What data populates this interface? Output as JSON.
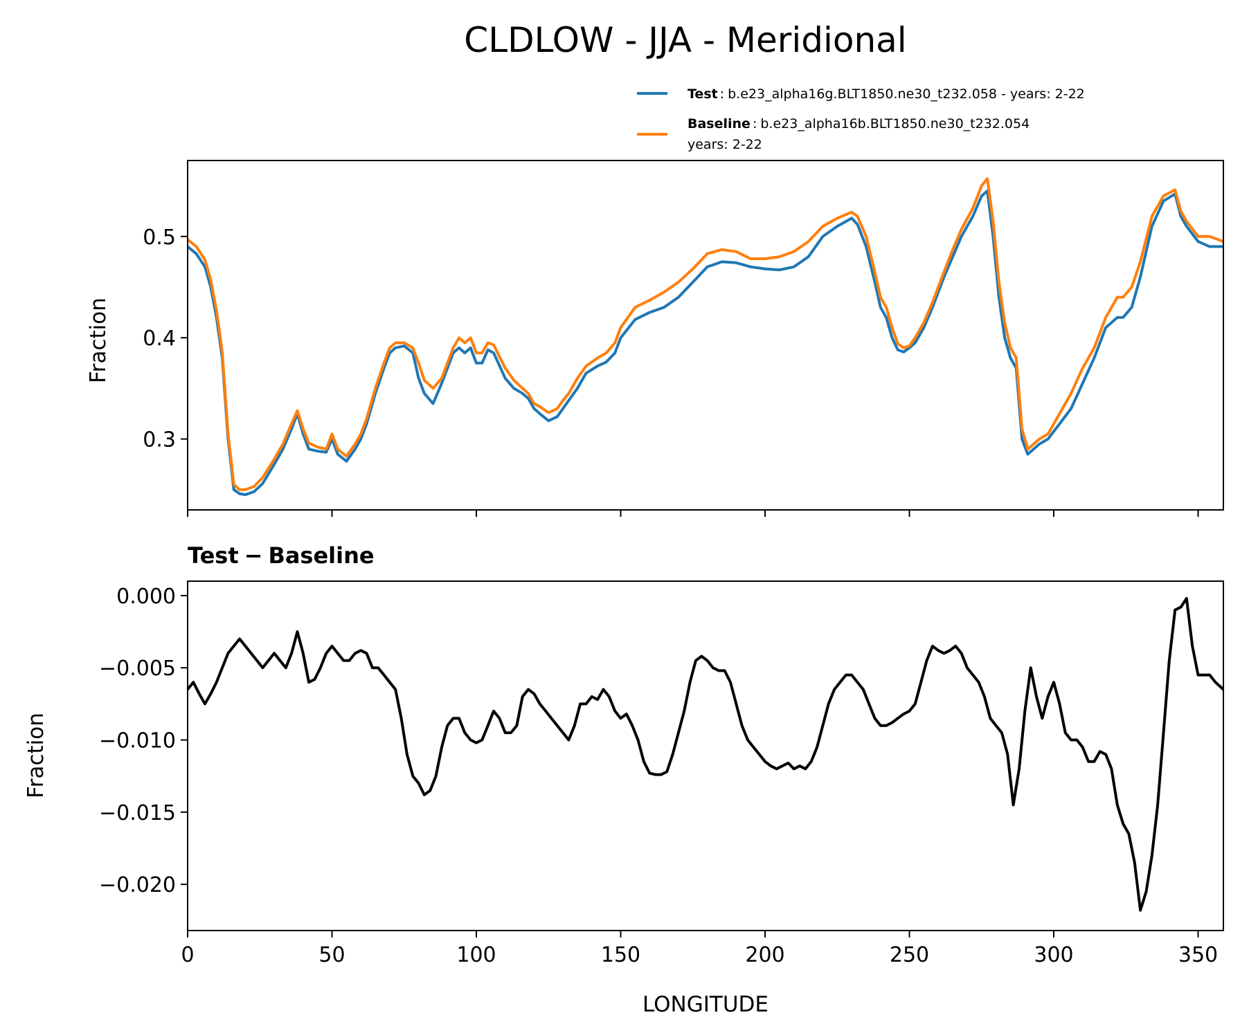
{
  "chart_data": [
    {
      "type": "line",
      "title": "CLDLOW - JJA - Meridional",
      "ylabel": "Fraction",
      "xlim": [
        0,
        358.75
      ],
      "ylim": [
        0.23,
        0.575
      ],
      "yticks": [
        "0.3",
        "0.4",
        "0.5"
      ],
      "ytick_values": [
        0.3,
        0.4,
        0.5
      ],
      "xticks": [
        0,
        50,
        100,
        150,
        200,
        250,
        300,
        350
      ],
      "legend": {
        "position": "above-right",
        "entries": [
          {
            "series": "Test",
            "name": "Test",
            "separator": ":",
            "desc": "b.e23_alpha16g.BLT1850.ne30_t232.058 - years: 2-22",
            "desc2": ""
          },
          {
            "series": "Baseline",
            "name": "Baseline",
            "separator": ":",
            "desc": "b.e23_alpha16b.BLT1850.ne30_t232.054",
            "desc2": "years: 2-22"
          }
        ]
      },
      "series": [
        {
          "name": "Test",
          "color": "#1f77b4",
          "x": [
            0,
            3,
            6,
            8,
            10,
            12,
            14,
            16,
            18,
            20,
            23,
            26,
            30,
            33,
            36,
            38,
            40,
            42,
            45,
            48,
            50,
            52,
            55,
            58,
            60,
            62,
            65,
            68,
            70,
            72,
            75,
            78,
            80,
            82,
            85,
            88,
            90,
            92,
            94,
            96,
            98,
            100,
            102,
            104,
            106,
            110,
            113,
            116,
            118,
            120,
            122,
            125,
            128,
            130,
            132,
            135,
            138,
            142,
            145,
            148,
            150,
            155,
            160,
            165,
            170,
            175,
            180,
            185,
            190,
            195,
            200,
            205,
            210,
            215,
            220,
            225,
            230,
            232,
            235,
            238,
            240,
            242,
            244,
            246,
            248,
            250,
            252,
            255,
            258,
            262,
            265,
            268,
            272,
            275,
            277,
            279,
            281,
            283,
            285,
            287,
            289,
            291,
            293,
            295,
            298,
            302,
            306,
            310,
            314,
            318,
            322,
            324,
            327,
            330,
            334,
            338,
            342,
            344,
            346,
            350,
            354,
            358.75
          ],
          "values": [
            0.49,
            0.483,
            0.47,
            0.45,
            0.42,
            0.38,
            0.3,
            0.25,
            0.246,
            0.245,
            0.248,
            0.256,
            0.275,
            0.29,
            0.31,
            0.325,
            0.305,
            0.29,
            0.288,
            0.287,
            0.3,
            0.285,
            0.278,
            0.29,
            0.3,
            0.315,
            0.345,
            0.37,
            0.385,
            0.39,
            0.392,
            0.385,
            0.36,
            0.345,
            0.335,
            0.355,
            0.37,
            0.385,
            0.39,
            0.385,
            0.39,
            0.375,
            0.375,
            0.388,
            0.385,
            0.36,
            0.35,
            0.345,
            0.34,
            0.33,
            0.325,
            0.318,
            0.322,
            0.33,
            0.338,
            0.35,
            0.365,
            0.372,
            0.376,
            0.385,
            0.4,
            0.418,
            0.425,
            0.43,
            0.44,
            0.455,
            0.47,
            0.475,
            0.474,
            0.47,
            0.468,
            0.467,
            0.47,
            0.48,
            0.5,
            0.51,
            0.518,
            0.512,
            0.49,
            0.455,
            0.43,
            0.42,
            0.4,
            0.388,
            0.386,
            0.39,
            0.395,
            0.41,
            0.43,
            0.46,
            0.48,
            0.5,
            0.52,
            0.54,
            0.545,
            0.5,
            0.44,
            0.4,
            0.38,
            0.37,
            0.3,
            0.285,
            0.29,
            0.295,
            0.3,
            0.315,
            0.33,
            0.355,
            0.38,
            0.41,
            0.42,
            0.42,
            0.43,
            0.46,
            0.51,
            0.535,
            0.542,
            0.52,
            0.51,
            0.495,
            0.49,
            0.49
          ]
        },
        {
          "name": "Baseline",
          "color": "#ff7f0e",
          "x": [
            0,
            3,
            6,
            8,
            10,
            12,
            14,
            16,
            18,
            20,
            23,
            26,
            30,
            33,
            36,
            38,
            40,
            42,
            45,
            48,
            50,
            52,
            55,
            58,
            60,
            62,
            65,
            68,
            70,
            72,
            75,
            78,
            80,
            82,
            85,
            88,
            90,
            92,
            94,
            96,
            98,
            100,
            102,
            104,
            106,
            110,
            113,
            116,
            118,
            120,
            122,
            125,
            128,
            130,
            132,
            135,
            138,
            142,
            145,
            148,
            150,
            155,
            160,
            165,
            170,
            175,
            180,
            185,
            190,
            195,
            200,
            205,
            210,
            215,
            220,
            225,
            230,
            232,
            235,
            238,
            240,
            242,
            244,
            246,
            248,
            250,
            252,
            255,
            258,
            262,
            265,
            268,
            272,
            275,
            277,
            279,
            281,
            283,
            285,
            287,
            289,
            291,
            293,
            295,
            298,
            302,
            306,
            310,
            314,
            318,
            322,
            324,
            327,
            330,
            334,
            338,
            342,
            344,
            346,
            350,
            354,
            358.75
          ],
          "values": [
            0.497,
            0.49,
            0.477,
            0.457,
            0.427,
            0.386,
            0.305,
            0.255,
            0.25,
            0.25,
            0.253,
            0.262,
            0.28,
            0.295,
            0.315,
            0.328,
            0.31,
            0.296,
            0.292,
            0.29,
            0.305,
            0.29,
            0.283,
            0.295,
            0.305,
            0.32,
            0.35,
            0.375,
            0.39,
            0.395,
            0.395,
            0.39,
            0.375,
            0.358,
            0.35,
            0.36,
            0.375,
            0.39,
            0.4,
            0.395,
            0.4,
            0.385,
            0.385,
            0.395,
            0.393,
            0.37,
            0.358,
            0.35,
            0.345,
            0.335,
            0.332,
            0.326,
            0.33,
            0.338,
            0.345,
            0.36,
            0.372,
            0.38,
            0.385,
            0.395,
            0.41,
            0.43,
            0.437,
            0.445,
            0.455,
            0.468,
            0.483,
            0.487,
            0.485,
            0.478,
            0.478,
            0.48,
            0.485,
            0.495,
            0.51,
            0.518,
            0.524,
            0.52,
            0.5,
            0.465,
            0.44,
            0.43,
            0.41,
            0.394,
            0.39,
            0.392,
            0.4,
            0.415,
            0.435,
            0.465,
            0.487,
            0.507,
            0.528,
            0.55,
            0.557,
            0.515,
            0.455,
            0.415,
            0.39,
            0.38,
            0.31,
            0.29,
            0.295,
            0.3,
            0.305,
            0.325,
            0.345,
            0.37,
            0.39,
            0.42,
            0.44,
            0.44,
            0.45,
            0.475,
            0.52,
            0.54,
            0.546,
            0.525,
            0.515,
            0.5,
            0.5,
            0.495
          ]
        }
      ]
    },
    {
      "type": "line",
      "title": "Test − Baseline",
      "title_parts": {
        "left": "Test",
        "op": "−",
        "right": "Baseline"
      },
      "xlabel": "LONGITUDE",
      "ylabel": "Fraction",
      "xlim": [
        0,
        358.75
      ],
      "ylim": [
        -0.0232,
        0.001
      ],
      "yticks": [
        "0.000",
        "−0.005",
        "−0.010",
        "−0.015",
        "−0.020"
      ],
      "ytick_values": [
        0.0,
        -0.005,
        -0.01,
        -0.015,
        -0.02
      ],
      "xticks": [
        0,
        50,
        100,
        150,
        200,
        250,
        300,
        350
      ],
      "series": [
        {
          "name": "Test − Baseline",
          "color": "#000000",
          "x": [
            0,
            2,
            4,
            6,
            8,
            10,
            12,
            14,
            16,
            18,
            20,
            22,
            24,
            26,
            28,
            30,
            32,
            34,
            36,
            38,
            40,
            42,
            44,
            46,
            48,
            50,
            52,
            54,
            56,
            58,
            60,
            62,
            64,
            66,
            68,
            70,
            72,
            74,
            76,
            78,
            80,
            82,
            84,
            86,
            88,
            90,
            92,
            94,
            96,
            98,
            100,
            102,
            104,
            106,
            108,
            110,
            112,
            114,
            116,
            118,
            120,
            122,
            124,
            126,
            128,
            130,
            132,
            134,
            136,
            138,
            140,
            142,
            144,
            146,
            148,
            150,
            152,
            154,
            156,
            158,
            160,
            162,
            164,
            166,
            168,
            170,
            172,
            174,
            176,
            178,
            180,
            182,
            184,
            186,
            188,
            190,
            192,
            194,
            196,
            198,
            200,
            202,
            204,
            206,
            208,
            210,
            212,
            214,
            216,
            218,
            220,
            222,
            224,
            226,
            228,
            230,
            232,
            234,
            236,
            238,
            240,
            242,
            244,
            246,
            248,
            250,
            252,
            254,
            256,
            258,
            260,
            262,
            264,
            266,
            268,
            270,
            272,
            274,
            276,
            278,
            280,
            282,
            284,
            286,
            288,
            290,
            292,
            294,
            296,
            298,
            300,
            302,
            304,
            306,
            308,
            310,
            312,
            314,
            316,
            318,
            320,
            322,
            324,
            326,
            328,
            330,
            332,
            334,
            336,
            338,
            340,
            342,
            344,
            346,
            348,
            350,
            352,
            354,
            356,
            358.75
          ],
          "values": [
            -0.0065,
            -0.006,
            -0.0068,
            -0.0075,
            -0.0068,
            -0.006,
            -0.005,
            -0.004,
            -0.0035,
            -0.003,
            -0.0035,
            -0.004,
            -0.0045,
            -0.005,
            -0.0045,
            -0.004,
            -0.0045,
            -0.005,
            -0.004,
            -0.0025,
            -0.004,
            -0.006,
            -0.0058,
            -0.005,
            -0.004,
            -0.0035,
            -0.004,
            -0.0045,
            -0.0045,
            -0.004,
            -0.0038,
            -0.004,
            -0.005,
            -0.005,
            -0.0055,
            -0.006,
            -0.0065,
            -0.0085,
            -0.011,
            -0.0125,
            -0.013,
            -0.0138,
            -0.0135,
            -0.0125,
            -0.0105,
            -0.009,
            -0.0085,
            -0.0085,
            -0.0095,
            -0.01,
            -0.0102,
            -0.01,
            -0.009,
            -0.008,
            -0.0085,
            -0.0095,
            -0.0095,
            -0.009,
            -0.007,
            -0.0065,
            -0.0068,
            -0.0075,
            -0.008,
            -0.0085,
            -0.009,
            -0.0095,
            -0.01,
            -0.009,
            -0.0075,
            -0.0075,
            -0.007,
            -0.0072,
            -0.0065,
            -0.007,
            -0.008,
            -0.0085,
            -0.0082,
            -0.009,
            -0.01,
            -0.0115,
            -0.0123,
            -0.0124,
            -0.0124,
            -0.0122,
            -0.011,
            -0.0095,
            -0.008,
            -0.006,
            -0.0045,
            -0.0042,
            -0.0045,
            -0.005,
            -0.0052,
            -0.0052,
            -0.006,
            -0.0075,
            -0.009,
            -0.01,
            -0.0105,
            -0.011,
            -0.0115,
            -0.0118,
            -0.012,
            -0.0118,
            -0.0116,
            -0.012,
            -0.0118,
            -0.012,
            -0.0115,
            -0.0105,
            -0.009,
            -0.0075,
            -0.0065,
            -0.006,
            -0.0055,
            -0.0055,
            -0.006,
            -0.0065,
            -0.0075,
            -0.0085,
            -0.009,
            -0.009,
            -0.0088,
            -0.0085,
            -0.0082,
            -0.008,
            -0.0075,
            -0.006,
            -0.0045,
            -0.0035,
            -0.0038,
            -0.004,
            -0.0038,
            -0.0035,
            -0.004,
            -0.005,
            -0.0055,
            -0.006,
            -0.007,
            -0.0085,
            -0.009,
            -0.0095,
            -0.011,
            -0.0145,
            -0.012,
            -0.008,
            -0.005,
            -0.007,
            -0.0085,
            -0.007,
            -0.006,
            -0.0075,
            -0.0095,
            -0.01,
            -0.01,
            -0.0105,
            -0.0115,
            -0.0115,
            -0.0108,
            -0.011,
            -0.012,
            -0.0145,
            -0.0158,
            -0.0165,
            -0.0185,
            -0.0218,
            -0.0205,
            -0.018,
            -0.0145,
            -0.0095,
            -0.0045,
            -0.001,
            -0.0008,
            -0.0002,
            -0.0035,
            -0.0055,
            -0.0055,
            -0.0055,
            -0.006,
            -0.0065
          ]
        }
      ]
    }
  ]
}
